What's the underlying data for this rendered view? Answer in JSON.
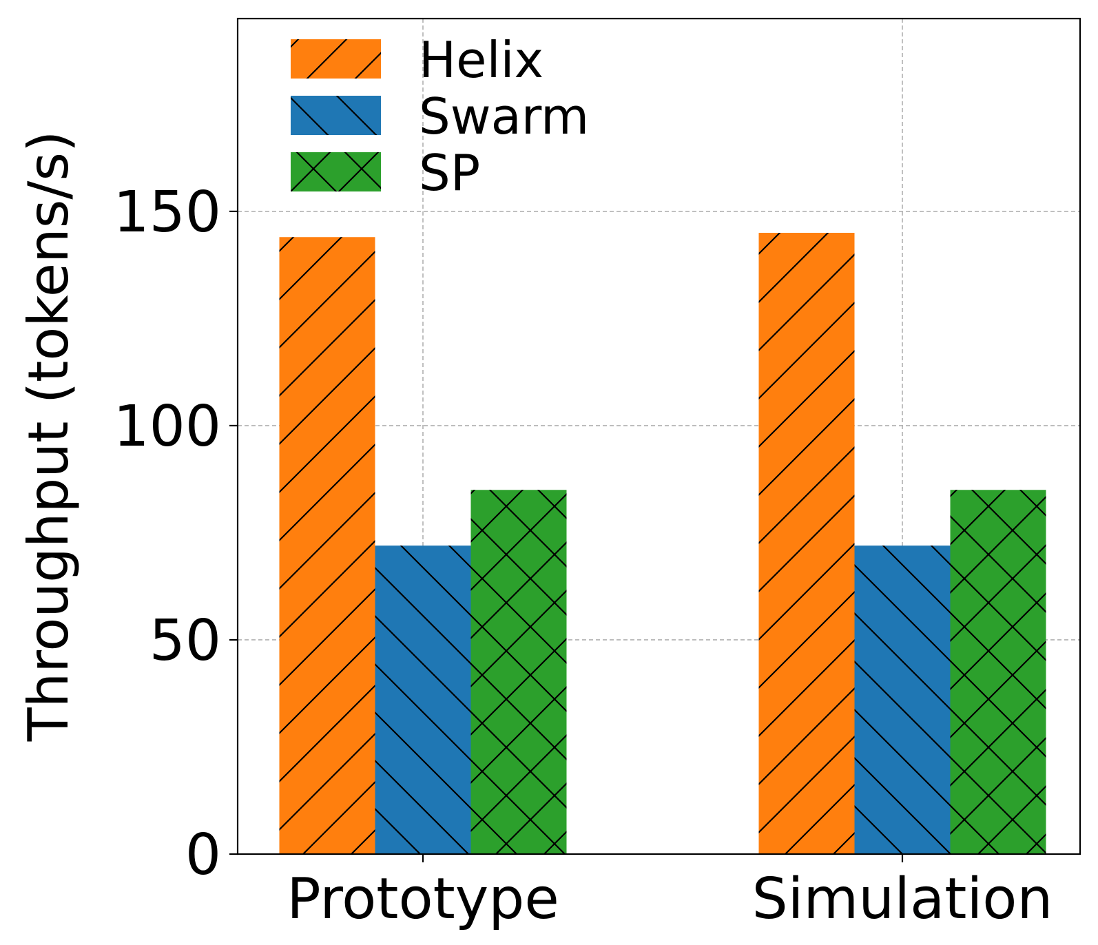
{
  "chart_data": {
    "type": "bar",
    "title": "",
    "xlabel": "",
    "ylabel": "Throughput (tokens/s)",
    "categories": [
      "Prototype",
      "Simulation"
    ],
    "series": [
      {
        "name": "Helix",
        "color": "#ff7f0e",
        "hatch": "/",
        "values": [
          144,
          145
        ]
      },
      {
        "name": "Swarm",
        "color": "#1f77b4",
        "hatch": "\\",
        "values": [
          72,
          72
        ]
      },
      {
        "name": "SP",
        "color": "#2ca02c",
        "hatch": "x",
        "values": [
          85,
          85
        ]
      }
    ],
    "ylim": [
      0,
      195
    ],
    "yticks": [
      0,
      50,
      100,
      150
    ],
    "ytick_labels": [
      "0",
      "50",
      "100",
      "150"
    ],
    "grid": true,
    "legend": "top-left"
  }
}
